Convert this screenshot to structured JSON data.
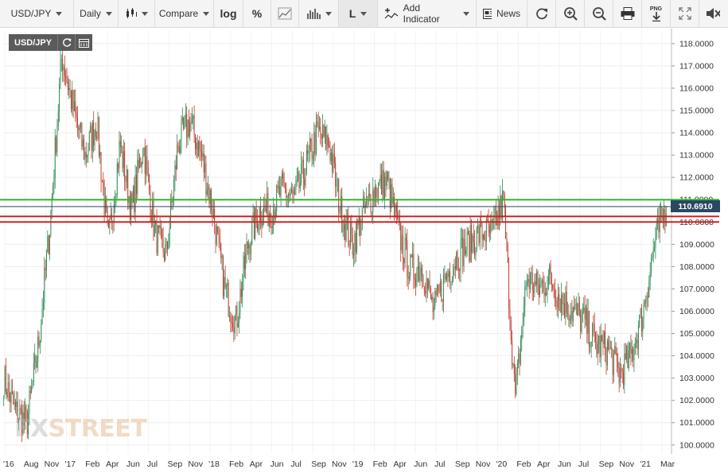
{
  "toolbar": {
    "symbol": "USD/JPY",
    "interval": "Daily",
    "compare": "Compare",
    "log": "log",
    "percent": "%",
    "line_style": "L",
    "add_indicator": "Add Indicator",
    "news": "News",
    "png_label": "PNG"
  },
  "chart": {
    "symbol_label": "USD/JPY",
    "current_price_label": "110.6910",
    "watermark_fx": "FX",
    "watermark_street": "STREET",
    "colors": {
      "up": "#2e8b57",
      "down": "#c0392b",
      "support": "#d62020",
      "resistance": "#2db82d",
      "price_line": "#2a4863"
    }
  },
  "chart_data": {
    "type": "candlestick",
    "title": "",
    "y_ticks": [
      "118.0000",
      "117.0000",
      "116.0000",
      "115.0000",
      "114.0000",
      "113.0000",
      "112.0000",
      "111.0000",
      "110.0000",
      "109.0000",
      "108.0000",
      "107.0000",
      "106.0000",
      "105.0000",
      "104.0000",
      "103.0000",
      "102.0000",
      "101.0000",
      "100.0000"
    ],
    "ylim": [
      99.6,
      118.6
    ],
    "x_ticks": [
      "'16",
      "Aug",
      "Nov",
      "'17",
      "Feb",
      "Apr",
      "Jun",
      "Jul",
      "Sep",
      "Nov",
      "'18",
      "Feb",
      "Apr",
      "Jun",
      "Jul",
      "Sep",
      "Nov",
      "'19",
      "Feb",
      "Apr",
      "Jun",
      "Jul",
      "Sep",
      "Nov",
      "'20",
      "Feb",
      "Apr",
      "Jun",
      "Jul",
      "Sep",
      "Nov",
      "'21",
      "Mar"
    ],
    "horizontal_lines": [
      {
        "value": 111.0,
        "color": "resistance"
      },
      {
        "value": 110.69,
        "color": "price_line"
      },
      {
        "value": 110.25,
        "color": "support"
      },
      {
        "value": 110.0,
        "color": "support"
      }
    ],
    "current_price": 110.691,
    "approximate_path": [
      {
        "date": "2016-06",
        "close": 103.0
      },
      {
        "date": "2016-07",
        "close": 101.5
      },
      {
        "date": "2016-09",
        "close": 101.0
      },
      {
        "date": "2016-10",
        "close": 104.5
      },
      {
        "date": "2016-11",
        "close": 110.0
      },
      {
        "date": "2016-12",
        "close": 117.5
      },
      {
        "date": "2017-01",
        "close": 115.0
      },
      {
        "date": "2017-02",
        "close": 113.0
      },
      {
        "date": "2017-03",
        "close": 114.5
      },
      {
        "date": "2017-04",
        "close": 109.0
      },
      {
        "date": "2017-05",
        "close": 113.5
      },
      {
        "date": "2017-06",
        "close": 110.5
      },
      {
        "date": "2017-07",
        "close": 113.5
      },
      {
        "date": "2017-08",
        "close": 109.5
      },
      {
        "date": "2017-09",
        "close": 108.5
      },
      {
        "date": "2017-10",
        "close": 113.5
      },
      {
        "date": "2017-11",
        "close": 114.5
      },
      {
        "date": "2017-12",
        "close": 113.0
      },
      {
        "date": "2018-01",
        "close": 110.5
      },
      {
        "date": "2018-02",
        "close": 107.0
      },
      {
        "date": "2018-03",
        "close": 105.5
      },
      {
        "date": "2018-04",
        "close": 109.0
      },
      {
        "date": "2018-05",
        "close": 110.5
      },
      {
        "date": "2018-06",
        "close": 110.5
      },
      {
        "date": "2018-07",
        "close": 111.5
      },
      {
        "date": "2018-08",
        "close": 111.0
      },
      {
        "date": "2018-09",
        "close": 112.5
      },
      {
        "date": "2018-10",
        "close": 114.0
      },
      {
        "date": "2018-11",
        "close": 113.5
      },
      {
        "date": "2018-12",
        "close": 110.5
      },
      {
        "date": "2019-01",
        "close": 109.0
      },
      {
        "date": "2019-02",
        "close": 110.5
      },
      {
        "date": "2019-03",
        "close": 111.5
      },
      {
        "date": "2019-04",
        "close": 111.8
      },
      {
        "date": "2019-05",
        "close": 109.5
      },
      {
        "date": "2019-06",
        "close": 107.8
      },
      {
        "date": "2019-07",
        "close": 108.0
      },
      {
        "date": "2019-08",
        "close": 106.0
      },
      {
        "date": "2019-09",
        "close": 107.5
      },
      {
        "date": "2019-10",
        "close": 108.5
      },
      {
        "date": "2019-11",
        "close": 109.0
      },
      {
        "date": "2019-12",
        "close": 109.5
      },
      {
        "date": "2020-01",
        "close": 109.5
      },
      {
        "date": "2020-02",
        "close": 111.0
      },
      {
        "date": "2020-03",
        "close": 102.0
      },
      {
        "date": "2020-04",
        "close": 107.5
      },
      {
        "date": "2020-05",
        "close": 107.0
      },
      {
        "date": "2020-06",
        "close": 107.5
      },
      {
        "date": "2020-07",
        "close": 106.5
      },
      {
        "date": "2020-08",
        "close": 106.0
      },
      {
        "date": "2020-09",
        "close": 105.5
      },
      {
        "date": "2020-10",
        "close": 104.5
      },
      {
        "date": "2020-11",
        "close": 104.3
      },
      {
        "date": "2020-12",
        "close": 103.2
      },
      {
        "date": "2021-01",
        "close": 104.0
      },
      {
        "date": "2021-02",
        "close": 106.0
      },
      {
        "date": "2021-03",
        "close": 109.0
      },
      {
        "date": "2021-04",
        "close": 110.69
      }
    ]
  }
}
